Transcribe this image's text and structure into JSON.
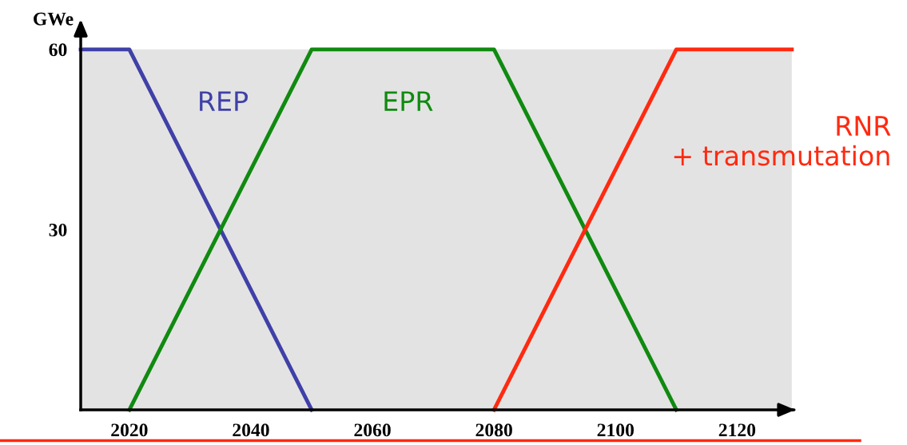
{
  "chart_data": {
    "type": "line",
    "ylabel": "GWe",
    "xlim": [
      2012,
      2129
    ],
    "ylim": [
      0,
      60
    ],
    "xticks": [
      2020,
      2040,
      2060,
      2080,
      2100,
      2120
    ],
    "yticks": [
      30,
      60
    ],
    "grid": false,
    "legend": false,
    "marker": "none",
    "line_style": "solid",
    "series": [
      {
        "name": "REP",
        "color": "#4040a8",
        "x": [
          2012,
          2020,
          2050
        ],
        "values": [
          60,
          60,
          0
        ]
      },
      {
        "name": "EPR",
        "color": "#108a10",
        "x": [
          2020,
          2050,
          2080,
          2110
        ],
        "values": [
          0,
          60,
          60,
          0
        ]
      },
      {
        "name": "RNR\n+ transmutation",
        "color": "#ff2a10",
        "x": [
          2080,
          2110,
          2129
        ],
        "values": [
          0,
          60,
          60
        ]
      }
    ]
  }
}
